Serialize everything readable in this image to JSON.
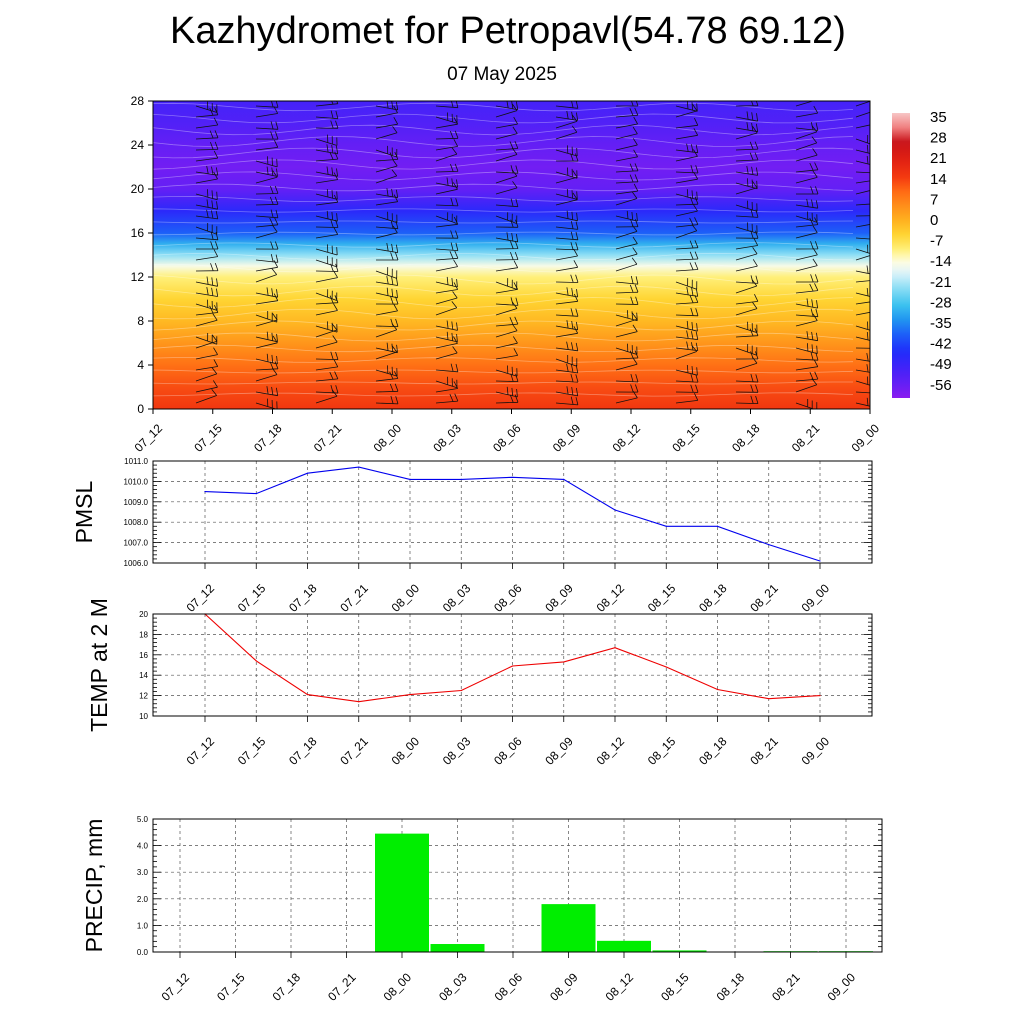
{
  "header": {
    "title": "Kazhydromet for Petropavl(54.78 69.12)",
    "date": "07 May 2025"
  },
  "time_labels": [
    "07_12",
    "07_15",
    "07_18",
    "07_21",
    "08_00",
    "08_03",
    "08_06",
    "08_09",
    "08_12",
    "08_15",
    "08_18",
    "08_21",
    "09_00"
  ],
  "colors": {
    "pmsl_line": "#0000ee",
    "temp_line": "#ee0000",
    "precip_bar": "#00ee00"
  },
  "chart_data": [
    {
      "type": "heatmap",
      "name": "vertical-temperature-section",
      "x": [
        "07_12",
        "07_15",
        "07_18",
        "07_21",
        "08_00",
        "08_03",
        "08_06",
        "08_09",
        "08_12",
        "08_15",
        "08_18",
        "08_21",
        "09_00"
      ],
      "ylim": [
        0,
        28
      ],
      "yticks": [
        0,
        4,
        8,
        12,
        16,
        20,
        24,
        28
      ],
      "colorbar": {
        "labels": [
          "35",
          "28",
          "21",
          "14",
          "7",
          "0",
          "-7",
          "-14",
          "-21",
          "-28",
          "-35",
          "-42",
          "-49",
          "-56"
        ],
        "range": [
          -60,
          38
        ]
      },
      "temperature_profile": [
        {
          "level": 0,
          "value": 17
        },
        {
          "level": 2,
          "value": 14
        },
        {
          "level": 4,
          "value": 10
        },
        {
          "level": 6,
          "value": 5
        },
        {
          "level": 8,
          "value": 0
        },
        {
          "level": 10,
          "value": -4
        },
        {
          "level": 12,
          "value": -9
        },
        {
          "level": 13,
          "value": -14
        },
        {
          "level": 14,
          "value": -22
        },
        {
          "level": 15,
          "value": -30
        },
        {
          "level": 16,
          "value": -38
        },
        {
          "level": 18,
          "value": -46
        },
        {
          "level": 20,
          "value": -55
        },
        {
          "level": 22,
          "value": -57
        },
        {
          "level": 24,
          "value": -55
        },
        {
          "level": 26,
          "value": -52
        },
        {
          "level": 28,
          "value": -50
        }
      ],
      "wind_barbs": true
    },
    {
      "type": "line",
      "ylabel": "PMSL",
      "x": [
        "07_12",
        "07_15",
        "07_18",
        "07_21",
        "08_00",
        "08_03",
        "08_06",
        "08_09",
        "08_12",
        "08_15",
        "08_18",
        "08_21",
        "09_00"
      ],
      "values": [
        1009.5,
        1009.4,
        1010.4,
        1010.7,
        1010.1,
        1010.1,
        1010.2,
        1010.1,
        1008.6,
        1007.8,
        1007.8,
        1006.9,
        1006.1
      ],
      "ylim": [
        1006.0,
        1011.0
      ],
      "yticks": [
        "1006.0",
        "1007.0",
        "1008.0",
        "1009.0",
        "1010.0",
        "1011.0"
      ],
      "grid": true
    },
    {
      "type": "line",
      "ylabel": "TEMP at 2 M",
      "x": [
        "07_12",
        "07_15",
        "07_18",
        "07_21",
        "08_00",
        "08_03",
        "08_06",
        "08_09",
        "08_12",
        "08_15",
        "08_18",
        "08_21",
        "09_00"
      ],
      "values": [
        20.0,
        15.4,
        12.1,
        11.4,
        12.1,
        12.5,
        14.9,
        15.3,
        16.7,
        14.8,
        12.6,
        11.7,
        12.0
      ],
      "ylim": [
        10,
        20
      ],
      "yticks": [
        "10",
        "12",
        "14",
        "16",
        "18",
        "20"
      ],
      "grid": true
    },
    {
      "type": "bar",
      "ylabel": "PRECIP, mm",
      "categories": [
        "07_12",
        "07_15",
        "07_18",
        "07_21",
        "08_00",
        "08_03",
        "08_06",
        "08_09",
        "08_12",
        "08_15",
        "08_18",
        "08_21",
        "09_00"
      ],
      "values": [
        0.0,
        0.0,
        0.0,
        0.0,
        4.45,
        0.3,
        0.0,
        1.8,
        0.42,
        0.06,
        0.0,
        0.03,
        0.03
      ],
      "ylim": [
        0.0,
        5.0
      ],
      "yticks": [
        "0.0",
        "1.0",
        "2.0",
        "3.0",
        "4.0",
        "5.0"
      ],
      "grid": true
    }
  ]
}
